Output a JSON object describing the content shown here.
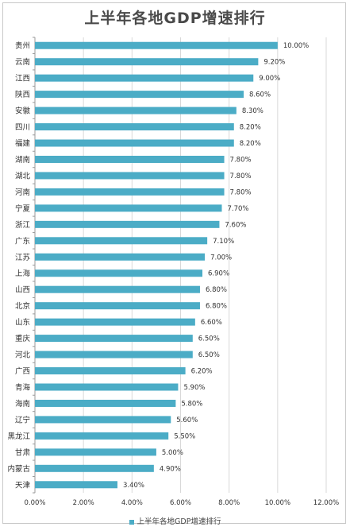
{
  "chart_data": {
    "type": "bar",
    "orientation": "horizontal",
    "title": "上半年各地GDP增速排行",
    "categories": [
      "贵州",
      "云南",
      "江西",
      "陕西",
      "安徽",
      "四川",
      "福建",
      "湖南",
      "湖北",
      "河南",
      "宁夏",
      "浙江",
      "广东",
      "江苏",
      "上海",
      "山西",
      "北京",
      "山东",
      "重庆",
      "河北",
      "广西",
      "青海",
      "海南",
      "辽宁",
      "黑龙江",
      "甘肃",
      "内蒙古",
      "天津"
    ],
    "series": [
      {
        "name": "上半年各地GDP增速排行",
        "values": [
          10.0,
          9.2,
          9.0,
          8.6,
          8.3,
          8.2,
          8.2,
          7.8,
          7.8,
          7.8,
          7.7,
          7.6,
          7.1,
          7.0,
          6.9,
          6.8,
          6.8,
          6.6,
          6.5,
          6.5,
          6.2,
          5.9,
          5.8,
          5.6,
          5.5,
          5.0,
          4.9,
          3.4
        ],
        "labels": [
          "10.00%",
          "9.20%",
          "9.00%",
          "8.60%",
          "8.30%",
          "8.20%",
          "8.20%",
          "7.80%",
          "7.80%",
          "7.80%",
          "7.70%",
          "7.60%",
          "7.10%",
          "7.00%",
          "6.90%",
          "6.80%",
          "6.80%",
          "6.60%",
          "6.50%",
          "6.50%",
          "6.20%",
          "5.90%",
          "5.80%",
          "5.60%",
          "5.50%",
          "5.00%",
          "4.90%",
          "3.40%"
        ]
      }
    ],
    "xlim": [
      0,
      12
    ],
    "xticks": [
      "0.00%",
      "2.00%",
      "4.00%",
      "6.00%",
      "8.00%",
      "10.00%",
      "12.00%"
    ],
    "xtick_values": [
      0,
      2,
      4,
      6,
      8,
      10,
      12
    ],
    "grid": true,
    "legend_position": "bottom",
    "colors": {
      "bar": "#4bacc6",
      "grid": "#d9d9d9",
      "axis": "#999999"
    }
  }
}
